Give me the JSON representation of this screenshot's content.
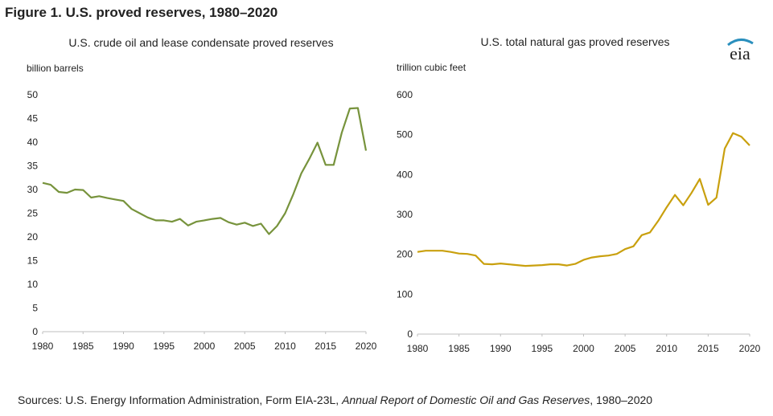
{
  "title": "Figure 1. U.S. proved reserves, 1980–2020",
  "logo": "eia",
  "source": {
    "text": "Sources: U.S. Energy Information Administration, Form EIA-23L, ",
    "italic": "Annual Report of Domestic Oil and Gas Reserves",
    "tail": ", 1980–2020"
  },
  "chart_data": [
    {
      "type": "line",
      "title": "U.S. crude oil and lease condensate proved reserves",
      "ylabel": "billion barrels",
      "color": "#77933c",
      "x": [
        1980,
        1981,
        1982,
        1983,
        1984,
        1985,
        1986,
        1987,
        1988,
        1989,
        1990,
        1991,
        1992,
        1993,
        1994,
        1995,
        1996,
        1997,
        1998,
        1999,
        2000,
        2001,
        2002,
        2003,
        2004,
        2005,
        2006,
        2007,
        2008,
        2009,
        2010,
        2011,
        2012,
        2013,
        2014,
        2015,
        2016,
        2017,
        2018,
        2019,
        2020
      ],
      "values": [
        31.4,
        31.0,
        29.5,
        29.3,
        30.0,
        29.9,
        28.3,
        28.6,
        28.2,
        27.9,
        27.6,
        25.9,
        25.0,
        24.1,
        23.5,
        23.5,
        23.2,
        23.8,
        22.4,
        23.2,
        23.5,
        23.8,
        24.0,
        23.1,
        22.6,
        23.0,
        22.3,
        22.8,
        20.6,
        22.3,
        25.0,
        29.0,
        33.4,
        36.5,
        39.9,
        35.2,
        35.2,
        42.0,
        47.1,
        47.2,
        38.2
      ],
      "xlim": [
        1980,
        2020
      ],
      "xticks": [
        1980,
        1985,
        1990,
        1995,
        2000,
        2005,
        2010,
        2015,
        2020
      ],
      "ylim": [
        0,
        50
      ],
      "yticks": [
        0,
        5,
        10,
        15,
        20,
        25,
        30,
        35,
        40,
        45,
        50
      ]
    },
    {
      "type": "line",
      "title": "U.S. total natural gas proved reserves",
      "ylabel": "trillion cubic feet",
      "color": "#c9a00e",
      "x": [
        1980,
        1981,
        1982,
        1983,
        1984,
        1985,
        1986,
        1987,
        1988,
        1989,
        1990,
        1991,
        1992,
        1993,
        1994,
        1995,
        1996,
        1997,
        1998,
        1999,
        2000,
        2001,
        2002,
        2003,
        2004,
        2005,
        2006,
        2007,
        2008,
        2009,
        2010,
        2011,
        2012,
        2013,
        2014,
        2015,
        2016,
        2017,
        2018,
        2019,
        2020
      ],
      "values": [
        206,
        209,
        209,
        209,
        206,
        202,
        201,
        197,
        176,
        175,
        177,
        175,
        173,
        171,
        172,
        173,
        175,
        175,
        172,
        176,
        186,
        192,
        195,
        197,
        201,
        213,
        220,
        248,
        255,
        284,
        318,
        349,
        323,
        354,
        389,
        324,
        342,
        465,
        504,
        495,
        473
      ],
      "xlim": [
        1980,
        2020
      ],
      "xticks": [
        1980,
        1985,
        1990,
        1995,
        2000,
        2005,
        2010,
        2015,
        2020
      ],
      "ylim": [
        0,
        600
      ],
      "yticks": [
        0,
        100,
        200,
        300,
        400,
        500,
        600
      ]
    }
  ]
}
